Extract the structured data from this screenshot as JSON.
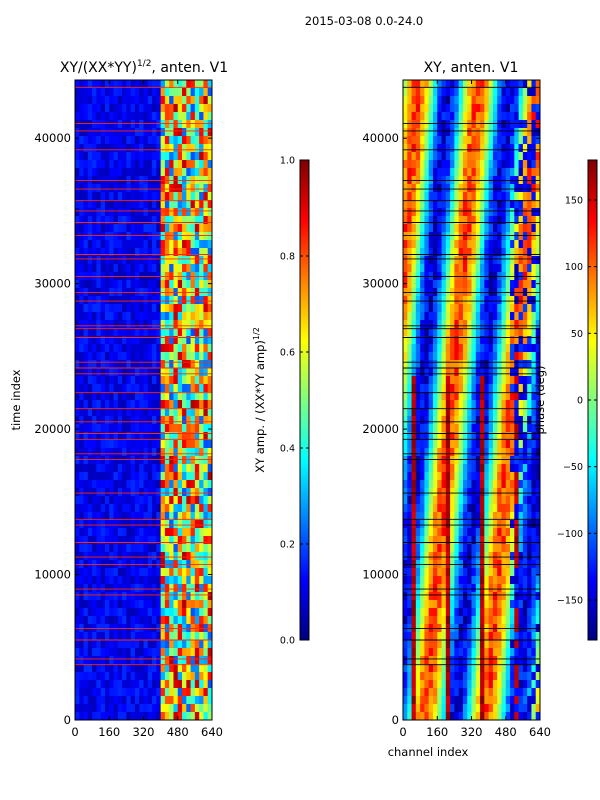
{
  "figure": {
    "suptitle": "2015-03-08 0.0-24.0"
  },
  "chart_data": [
    {
      "type": "heatmap",
      "title": "XY/(XX*YY)",
      "title_exponent": "1/2",
      "title_suffix": ", anten. V1",
      "xlabel": "",
      "ylabel": "time index",
      "xlim": [
        0,
        640
      ],
      "ylim": [
        0,
        44000
      ],
      "xticks": [
        0,
        160,
        320,
        480,
        640
      ],
      "yticks": [
        0,
        10000,
        20000,
        30000,
        40000
      ],
      "colorbar": {
        "label": "XY amp. / (XX*YY amp)",
        "label_exponent": "1/2",
        "range": [
          0.0,
          1.0
        ],
        "ticks": [
          "0.0",
          "0.2",
          "0.4",
          "0.6",
          "0.8",
          "1.0"
        ],
        "colormap": "jet"
      },
      "flag_lines": [
        3800,
        4200,
        5500,
        6300,
        8600,
        9000,
        10700,
        11200,
        12200,
        13400,
        13800,
        15600,
        17900,
        18300,
        19300,
        19700,
        20500,
        21400,
        22500,
        23800,
        24200,
        24600,
        26300,
        26900,
        27100,
        28800,
        29400,
        30500,
        31700,
        32000,
        33300,
        34200,
        35000,
        35700,
        36500,
        37100,
        39200,
        40500,
        41000,
        43500
      ],
      "regions": [
        {
          "x0": 0,
          "x1": 400,
          "level": "low",
          "value": 0.1
        },
        {
          "x0": 400,
          "x1": 640,
          "level": "high",
          "value": 0.55
        }
      ]
    },
    {
      "type": "heatmap",
      "title": "XY, anten. V1",
      "xlabel": "channel index",
      "ylabel": "",
      "xlim": [
        0,
        640
      ],
      "ylim": [
        0,
        44000
      ],
      "xticks": [
        0,
        160,
        320,
        480,
        640
      ],
      "yticks": [
        0,
        10000,
        20000,
        30000,
        40000
      ],
      "colorbar": {
        "label": "phase (deg)",
        "range": [
          -180,
          180
        ],
        "ticks": [
          "−150",
          "−100",
          "−50",
          "0",
          "50",
          "100",
          "150"
        ],
        "colormap": "jet"
      },
      "flag_lines": [
        3800,
        4200,
        5500,
        6300,
        8600,
        9000,
        10700,
        11200,
        12200,
        13400,
        13800,
        15600,
        17900,
        18300,
        19300,
        19700,
        20500,
        21400,
        22500,
        23800,
        24200,
        24600,
        26300,
        26900,
        27100,
        28800,
        29400,
        30500,
        31700,
        32000,
        33300,
        34200,
        35000,
        35700,
        36500,
        37100,
        39200,
        40500,
        41000,
        43500
      ]
    }
  ],
  "colors": {
    "flag_amp": "#ff2a00",
    "flag_phase": "#000000",
    "amp_background": "#00008f",
    "axis": "#000000"
  }
}
